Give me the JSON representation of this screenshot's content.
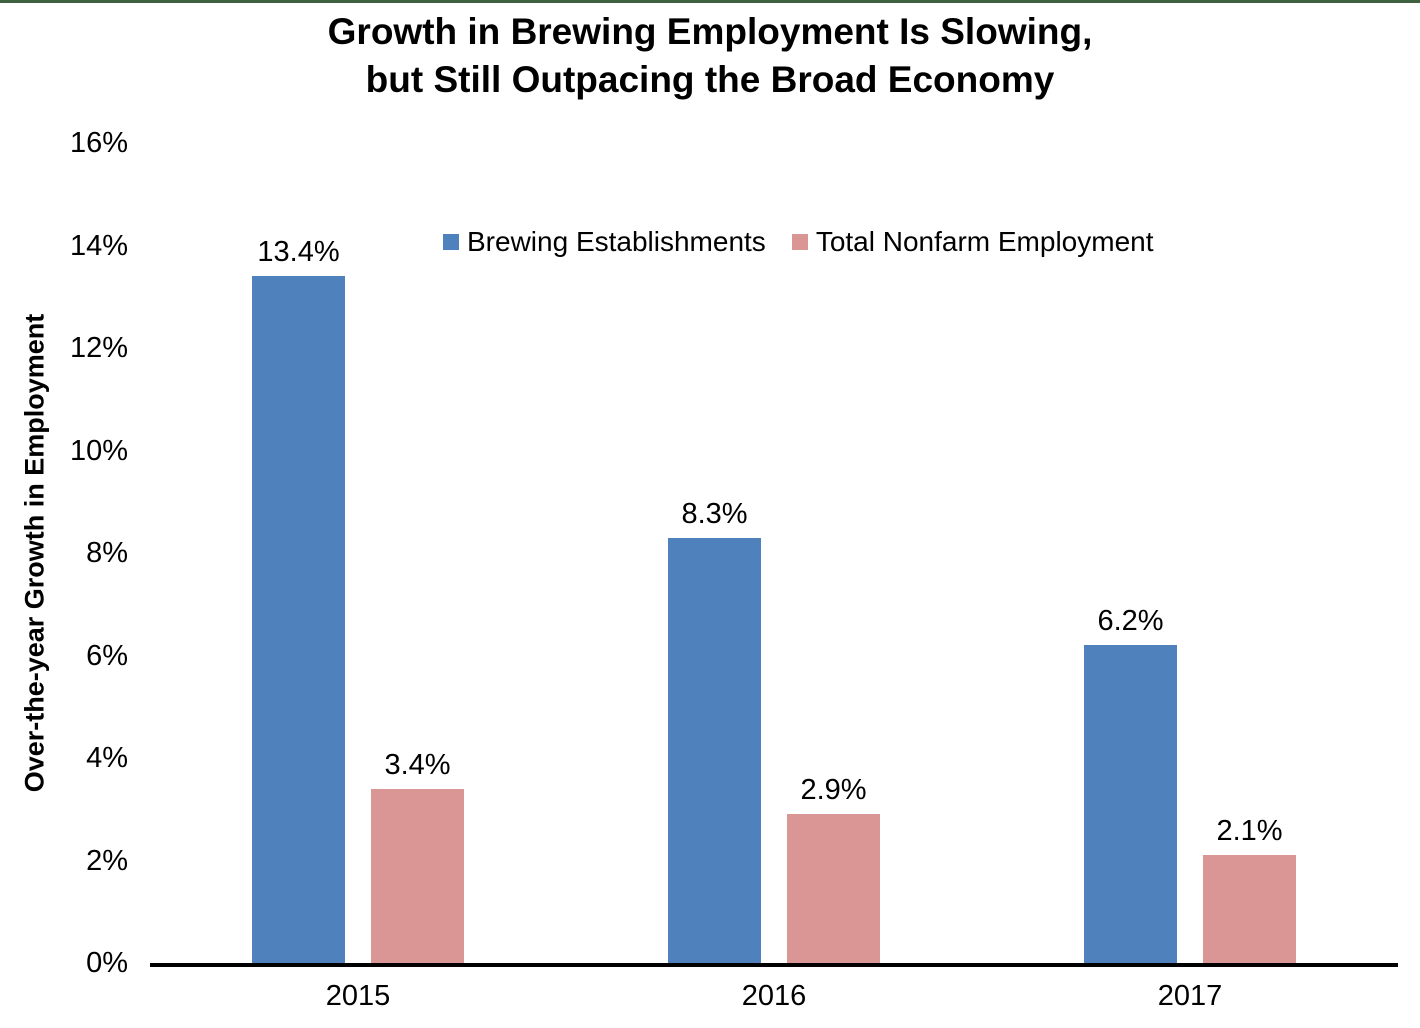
{
  "page": {
    "background": "#FFFFFF",
    "top_border_color": "#3F613F"
  },
  "chart_data": {
    "type": "bar",
    "title_line1": "Growth in Brewing Employment Is Slowing,",
    "title_line2": "but Still Outpacing the Broad Economy",
    "ylabel": "Over-the-year Growth in Employment",
    "xlabel": "",
    "categories": [
      "2015",
      "2016",
      "2017"
    ],
    "series": [
      {
        "name": "Brewing Establishments",
        "color": "#4F81BD",
        "values": [
          13.4,
          8.3,
          6.2
        ],
        "labels": [
          "13.4%",
          "8.3%",
          "6.2%"
        ]
      },
      {
        "name": "Total Nonfarm Employment",
        "color": "#D99694",
        "values": [
          3.4,
          2.9,
          2.1
        ],
        "labels": [
          "3.4%",
          "2.9%",
          "2.1%"
        ]
      }
    ],
    "ylim": [
      0,
      16
    ],
    "ytick_step": 2,
    "yticks": [
      "0%",
      "2%",
      "4%",
      "6%",
      "8%",
      "10%",
      "12%",
      "14%",
      "16%"
    ],
    "grid": false,
    "legend_position": "top-center-inside",
    "axis_line_color": "#000000"
  }
}
